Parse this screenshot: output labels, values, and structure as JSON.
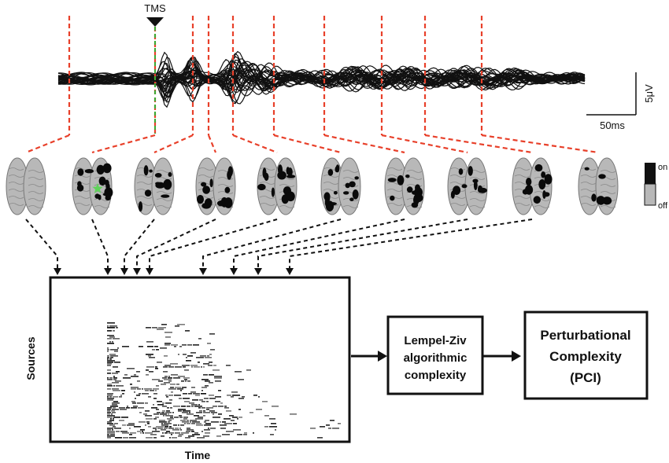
{
  "stimulus": {
    "label": "TMS"
  },
  "scale_bar": {
    "amplitude": "5μV",
    "time": "50ms"
  },
  "brain_legend": {
    "on": "on",
    "off": "off"
  },
  "matrix": {
    "ylabel": "Sources",
    "xlabel": "Time"
  },
  "pipeline": {
    "box1": [
      "Lempel-Ziv",
      "algorithmic",
      "complexity"
    ],
    "box2": [
      "Perturbational",
      "Complexity",
      "(PCI)"
    ]
  },
  "colors": {
    "sample_lines": "#e8402a",
    "stimulus_line": "#3aa832",
    "traces": "#111111",
    "brain_gray": "#b8b8b8",
    "active": "#0a0a0a",
    "star": "#5fd35a"
  },
  "brain_count": 10,
  "brain_activity": [
    0,
    0.45,
    0.35,
    0.4,
    0.4,
    0.5,
    0.35,
    0.3,
    0.35,
    0.15
  ]
}
